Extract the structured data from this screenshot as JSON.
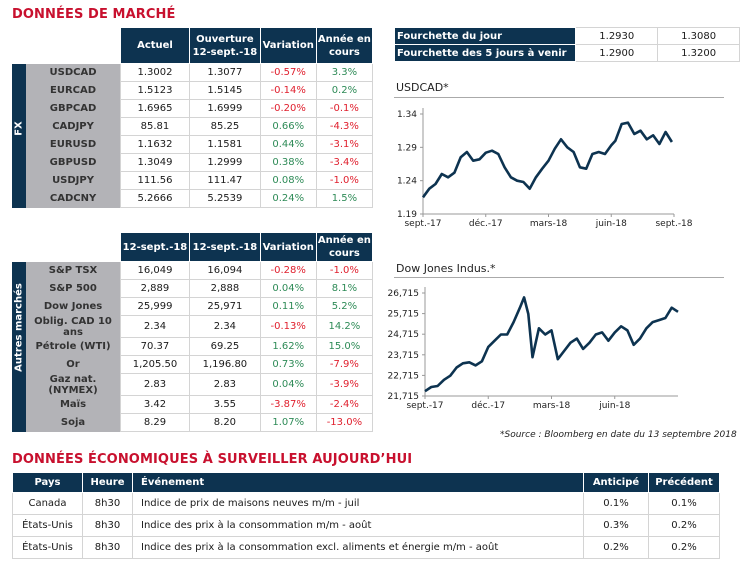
{
  "market": {
    "title": "DONNÉES DE MARCHÉ",
    "fx": {
      "side_label": "FX",
      "headers": [
        "Actuel",
        "Ouverture 12-sept.-18",
        "Variation",
        "Année en cours"
      ],
      "header_lines": [
        [
          "Actuel"
        ],
        [
          "Ouverture",
          "12-sept.-18"
        ],
        [
          "Variation"
        ],
        [
          "Année en",
          "cours"
        ]
      ],
      "rows": [
        {
          "name": "USDCAD",
          "current": "1.3002",
          "open": "1.3077",
          "change": "-0.57%",
          "ytd": "3.3%"
        },
        {
          "name": "EURCAD",
          "current": "1.5123",
          "open": "1.5145",
          "change": "-0.14%",
          "ytd": "0.2%"
        },
        {
          "name": "GBPCAD",
          "current": "1.6965",
          "open": "1.6999",
          "change": "-0.20%",
          "ytd": "-0.1%"
        },
        {
          "name": "CADJPY",
          "current": "85.81",
          "open": "85.25",
          "change": "0.66%",
          "ytd": "-4.3%"
        },
        {
          "name": "EURUSD",
          "current": "1.1632",
          "open": "1.1581",
          "change": "0.44%",
          "ytd": "-3.1%"
        },
        {
          "name": "GBPUSD",
          "current": "1.3049",
          "open": "1.2999",
          "change": "0.38%",
          "ytd": "-3.4%"
        },
        {
          "name": "USDJPY",
          "current": "111.56",
          "open": "111.47",
          "change": "0.08%",
          "ytd": "-1.0%"
        },
        {
          "name": "CADCNY",
          "current": "5.2666",
          "open": "5.2539",
          "change": "0.24%",
          "ytd": "1.5%"
        }
      ]
    },
    "other": {
      "side_label": "Autres marchés",
      "header_lines": [
        [
          "12-sept.-18"
        ],
        [
          "12-sept.-18"
        ],
        [
          "Variation"
        ],
        [
          "Année en",
          "cours"
        ]
      ],
      "rows": [
        {
          "name": "S&P TSX",
          "current": "16,049",
          "open": "16,094",
          "change": "-0.28%",
          "ytd": "-1.0%"
        },
        {
          "name": "S&P 500",
          "current": "2,889",
          "open": "2,888",
          "change": "0.04%",
          "ytd": "8.1%"
        },
        {
          "name": "Dow Jones",
          "current": "25,999",
          "open": "25,971",
          "change": "0.11%",
          "ytd": "5.2%"
        },
        {
          "name": "Oblig. CAD 10 ans",
          "current": "2.34",
          "open": "2.34",
          "change": "-0.13%",
          "ytd": "14.2%"
        },
        {
          "name": "Pétrole (WTI)",
          "current": "70.37",
          "open": "69.25",
          "change": "1.62%",
          "ytd": "15.0%"
        },
        {
          "name": "Or",
          "current": "1,205.50",
          "open": "1,196.80",
          "change": "0.73%",
          "ytd": "-7.9%"
        },
        {
          "name": "Gaz nat. (NYMEX)",
          "current": "2.83",
          "open": "2.83",
          "change": "0.04%",
          "ytd": "-3.9%"
        },
        {
          "name": "Maïs",
          "current": "3.42",
          "open": "3.55",
          "change": "-3.87%",
          "ytd": "-2.4%"
        },
        {
          "name": "Soja",
          "current": "8.29",
          "open": "8.20",
          "change": "1.07%",
          "ytd": "-13.0%"
        }
      ]
    }
  },
  "ranges": [
    {
      "label": "Fourchette du jour",
      "low": "1.2930",
      "high": "1.3080"
    },
    {
      "label": "Fourchette des 5 jours à venir",
      "low": "1.2900",
      "high": "1.3200"
    }
  ],
  "colors": {
    "navy": "#0d3350",
    "positive": "#2e8b57",
    "negative": "#e0202e",
    "title_red": "#c8102e",
    "row_label_bg": "#b3b3b7"
  },
  "chart_data": [
    {
      "type": "line",
      "title": "USDCAD*",
      "xlabel": "",
      "ylabel": "",
      "x_tick_labels": [
        "sept.-17",
        "déc.-17",
        "mars-18",
        "juin-18",
        "sept.-18"
      ],
      "y_tick_labels": [
        "1.19",
        "1.24",
        "1.29",
        "1.34"
      ],
      "ylim": [
        1.19,
        1.34
      ],
      "xlim": [
        0,
        12
      ],
      "grid": false,
      "series": [
        {
          "name": "USDCAD",
          "x": [
            0,
            0.3,
            0.6,
            0.9,
            1.2,
            1.5,
            1.8,
            2.1,
            2.4,
            2.7,
            3.0,
            3.3,
            3.6,
            3.9,
            4.2,
            4.5,
            4.8,
            5.1,
            5.4,
            5.7,
            6.0,
            6.3,
            6.6,
            6.9,
            7.2,
            7.5,
            7.8,
            8.1,
            8.4,
            8.7,
            9.0,
            9.2,
            9.5,
            9.8,
            10.1,
            10.4,
            10.7,
            11.0,
            11.3,
            11.6,
            11.9
          ],
          "y": [
            1.215,
            1.228,
            1.235,
            1.25,
            1.245,
            1.252,
            1.275,
            1.283,
            1.27,
            1.272,
            1.282,
            1.285,
            1.28,
            1.26,
            1.245,
            1.24,
            1.238,
            1.228,
            1.245,
            1.258,
            1.27,
            1.288,
            1.302,
            1.29,
            1.283,
            1.26,
            1.258,
            1.28,
            1.283,
            1.28,
            1.293,
            1.3,
            1.325,
            1.327,
            1.31,
            1.315,
            1.302,
            1.308,
            1.295,
            1.313,
            1.298
          ]
        }
      ]
    },
    {
      "type": "line",
      "title": "Dow Jones Indus.*",
      "xlabel": "",
      "ylabel": "",
      "x_tick_labels": [
        "sept.-17",
        "déc.-17",
        "mars-18",
        "juin-18"
      ],
      "y_tick_labels": [
        "21,715",
        "22,715",
        "23,715",
        "24,715",
        "25,715",
        "26,715"
      ],
      "ylim": [
        21715,
        26715
      ],
      "xlim": [
        0,
        12
      ],
      "grid": false,
      "series": [
        {
          "name": "Dow Jones",
          "x": [
            0,
            0.3,
            0.6,
            0.9,
            1.2,
            1.5,
            1.8,
            2.1,
            2.4,
            2.7,
            3.0,
            3.3,
            3.6,
            3.9,
            4.2,
            4.5,
            4.7,
            4.9,
            5.1,
            5.4,
            5.7,
            6.0,
            6.3,
            6.6,
            6.9,
            7.2,
            7.5,
            7.8,
            8.1,
            8.4,
            8.7,
            9.0,
            9.3,
            9.6,
            9.9,
            10.2,
            10.5,
            10.8,
            11.1,
            11.4,
            11.7,
            12.0
          ],
          "y": [
            21950,
            22150,
            22200,
            22500,
            22700,
            23100,
            23300,
            23350,
            23200,
            23400,
            24100,
            24400,
            24700,
            24700,
            25300,
            26000,
            26500,
            25700,
            23600,
            25000,
            24700,
            24900,
            23500,
            23900,
            24300,
            24500,
            24000,
            24300,
            24700,
            24800,
            24400,
            24800,
            25100,
            24900,
            24200,
            24500,
            25000,
            25300,
            25400,
            25500,
            26000,
            25800
          ]
        }
      ]
    }
  ],
  "source_note": "*Source : Bloomberg en date du  13 septembre 2018",
  "economic": {
    "title": "DONNÉES ÉCONOMIQUES À SURVEILLER AUJOURD’HUI",
    "headers": {
      "country": "Pays",
      "time": "Heure",
      "event": "Événement",
      "expected": "Anticipé",
      "previous": "Précédent"
    },
    "rows": [
      {
        "country": "Canada",
        "time": "8h30",
        "event": "Indice de prix de maisons neuves m/m - juil",
        "expected": "0.1%",
        "previous": "0.1%"
      },
      {
        "country": "États-Unis",
        "time": "8h30",
        "event": "Indice des prix à la consommation m/m - août",
        "expected": "0.3%",
        "previous": "0.2%"
      },
      {
        "country": "États-Unis",
        "time": "8h30",
        "event": "Indice des prix à la consommation excl. aliments et énergie m/m - août",
        "expected": "0.2%",
        "previous": "0.2%"
      }
    ]
  }
}
